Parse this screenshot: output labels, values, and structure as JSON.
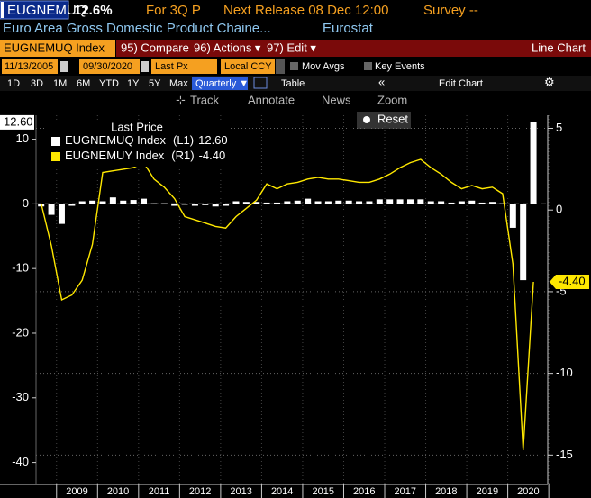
{
  "header": {
    "ticker": "EUGNEMUQ",
    "last": "12.6%",
    "period": "For 3Q P",
    "next_release": "Next Release 08 Dec 12:00",
    "survey": "Survey --",
    "description": "Euro Area Gross Domestic Product Chaine...",
    "source": "Eurostat"
  },
  "toolbar": {
    "security": "EUGNEMUQ Index",
    "compare": "95) Compare",
    "actions": "96) Actions ▾",
    "edit": "97) Edit ▾",
    "view": "Line Chart",
    "start_date": "11/13/2005",
    "end_date": "09/30/2020",
    "price": "Last Px",
    "currency": "Local CCY",
    "mov_avgs": "Mov Avgs",
    "key_events": "Key Events",
    "ranges": [
      "1D",
      "3D",
      "1M",
      "6M",
      "YTD",
      "1Y",
      "5Y",
      "Max"
    ],
    "frequency": "Quarterly ▼",
    "table": "Table",
    "edit_chart": "Edit Chart",
    "track": "Track",
    "annotate": "Annotate",
    "news": "News",
    "zoom": "Zoom",
    "reset": "Reset"
  },
  "chart_data": {
    "type": "combo",
    "legend_title": "Last Price",
    "x": [
      2008.625,
      2008.875,
      2009.125,
      2009.375,
      2009.625,
      2009.875,
      2010.125,
      2010.375,
      2010.625,
      2010.875,
      2011.125,
      2011.375,
      2011.625,
      2011.875,
      2012.125,
      2012.375,
      2012.625,
      2012.875,
      2013.125,
      2013.375,
      2013.625,
      2013.875,
      2014.125,
      2014.375,
      2014.625,
      2014.875,
      2015.125,
      2015.375,
      2015.625,
      2015.875,
      2016.125,
      2016.375,
      2016.625,
      2016.875,
      2017.125,
      2017.375,
      2017.625,
      2017.875,
      2018.125,
      2018.375,
      2018.625,
      2018.875,
      2019.125,
      2019.375,
      2019.625,
      2019.875,
      2020.125,
      2020.375,
      2020.625
    ],
    "series": [
      {
        "name": "EUGNEMUQ Index",
        "type": "bar",
        "axis": "y",
        "color": "#ffffff",
        "legend_tag": "(L1)",
        "last_label": "12.60",
        "values": [
          -0.4,
          -1.7,
          -3.1,
          -0.3,
          0.4,
          0.5,
          0.4,
          1.0,
          0.5,
          0.6,
          0.8,
          0.1,
          0.1,
          -0.3,
          -0.1,
          -0.3,
          -0.2,
          -0.4,
          -0.3,
          0.4,
          0.3,
          0.3,
          0.2,
          0.2,
          0.4,
          0.5,
          0.8,
          0.4,
          0.4,
          0.5,
          0.5,
          0.4,
          0.4,
          0.7,
          0.7,
          0.7,
          0.7,
          0.7,
          0.4,
          0.4,
          0.2,
          0.4,
          0.5,
          0.2,
          0.3,
          0.1,
          -3.7,
          -11.8,
          12.6
        ]
      },
      {
        "name": "EUGNEMUY Index",
        "type": "line",
        "axis": "y2",
        "color": "#ffe800",
        "legend_tag": "(R1)",
        "last_label": "-4.40",
        "values": [
          0.4,
          -2.2,
          -5.5,
          -5.2,
          -4.3,
          -2.1,
          2.3,
          2.4,
          2.5,
          2.6,
          2.9,
          1.9,
          1.4,
          0.7,
          -0.4,
          -0.6,
          -0.8,
          -1.0,
          -1.1,
          -0.4,
          0.1,
          0.6,
          1.6,
          1.3,
          1.6,
          1.7,
          1.9,
          2.0,
          1.9,
          1.9,
          1.8,
          1.7,
          1.7,
          1.9,
          2.2,
          2.6,
          2.9,
          3.1,
          2.6,
          2.2,
          1.7,
          1.3,
          1.5,
          1.3,
          1.4,
          1.0,
          -3.3,
          -14.7,
          -4.4
        ]
      }
    ],
    "xlim": [
      2008.5,
      2020.975
    ],
    "xticks": [
      {
        "value": 2009.5,
        "label": "2009"
      },
      {
        "value": 2010.5,
        "label": "2010"
      },
      {
        "value": 2011.5,
        "label": "2011"
      },
      {
        "value": 2012.5,
        "label": "2012"
      },
      {
        "value": 2013.5,
        "label": "2013"
      },
      {
        "value": 2014.5,
        "label": "2014"
      },
      {
        "value": 2015.5,
        "label": "2015"
      },
      {
        "value": 2016.5,
        "label": "2016"
      },
      {
        "value": 2017.5,
        "label": "2017"
      },
      {
        "value": 2018.5,
        "label": "2018"
      },
      {
        "value": 2019.5,
        "label": "2019"
      },
      {
        "value": 2020.5,
        "label": "2020"
      }
    ],
    "ylim": [
      -43.4,
      13.7
    ],
    "yticks": [
      10,
      0,
      -10,
      -20,
      -30,
      -40
    ],
    "y2lim": [
      -16.8,
      5.8
    ],
    "y2ticks": [
      5,
      0,
      -5,
      -10,
      -15
    ],
    "grid": true
  }
}
